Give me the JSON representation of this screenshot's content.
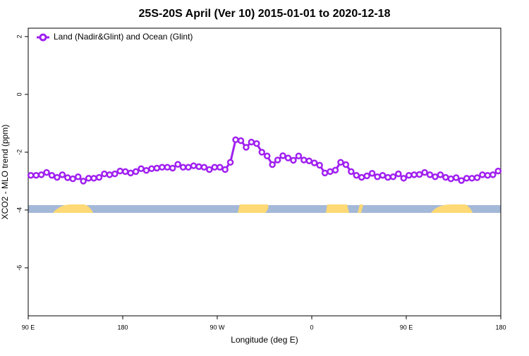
{
  "chart_data": {
    "type": "line",
    "title": "25S-20S April (Ver 10)   2015-01-01 to 2020-12-18",
    "x_label": "Longitude (deg E)",
    "y_label": "XCO2 - MLO trend (ppm)",
    "xlim": [
      90,
      540
    ],
    "ylim": [
      -7.66,
      2.29
    ],
    "xticks": [
      {
        "value": 90,
        "label": "90 E"
      },
      180,
      {
        "value": 270,
        "label": "90 W"
      },
      {
        "value": 360,
        "label": "0"
      },
      {
        "value": 450,
        "label": "90 E"
      },
      {
        "value": 540,
        "label": "180"
      }
    ],
    "yticks": [
      2,
      0,
      -2,
      -4,
      -6
    ],
    "legend": "top-left",
    "x": [
      92.5,
      97.5,
      102.5,
      107.5,
      112.5,
      117.5,
      122.5,
      127.5,
      132.5,
      137.5,
      142.5,
      147.5,
      152.5,
      157.5,
      162.5,
      167.5,
      172.5,
      177.5,
      182.5,
      187.5,
      192.5,
      197.5,
      202.5,
      207.5,
      212.5,
      217.5,
      222.5,
      227.5,
      232.5,
      237.5,
      242.5,
      247.5,
      252.5,
      257.5,
      262.5,
      267.5,
      272.5,
      277.5,
      282.5,
      287.5,
      292.5,
      297.5,
      302.5,
      307.5,
      312.5,
      317.5,
      322.5,
      327.5,
      332.5,
      337.5,
      342.5,
      347.5,
      352.5,
      357.5,
      362.5,
      367.5,
      372.5,
      377.5,
      382.5,
      387.5,
      392.5,
      397.5,
      402.5,
      407.5,
      412.5,
      417.5,
      422.5,
      427.5,
      432.5,
      437.5,
      442.5,
      447.5,
      452.5,
      457.5,
      462.5,
      467.5,
      472.5,
      477.5,
      482.5,
      487.5,
      492.5,
      497.5,
      502.5,
      507.5,
      512.5,
      517.5,
      522.5,
      527.5,
      532.5,
      537.5
    ],
    "series": [
      {
        "name": "Land (Nadir&Glint) and Ocean (Glint)",
        "color": "#a020f0",
        "values": [
          -2.8,
          -2.8,
          -2.78,
          -2.7,
          -2.8,
          -2.87,
          -2.78,
          -2.88,
          -2.92,
          -2.85,
          -3.0,
          -2.9,
          -2.9,
          -2.87,
          -2.75,
          -2.78,
          -2.75,
          -2.65,
          -2.67,
          -2.72,
          -2.67,
          -2.57,
          -2.63,
          -2.57,
          -2.55,
          -2.52,
          -2.52,
          -2.55,
          -2.42,
          -2.52,
          -2.52,
          -2.47,
          -2.5,
          -2.52,
          -2.6,
          -2.52,
          -2.52,
          -2.6,
          -2.35,
          -1.57,
          -1.6,
          -1.83,
          -1.65,
          -1.7,
          -2.0,
          -2.13,
          -2.43,
          -2.27,
          -2.12,
          -2.2,
          -2.28,
          -2.13,
          -2.27,
          -2.3,
          -2.37,
          -2.45,
          -2.72,
          -2.67,
          -2.62,
          -2.35,
          -2.43,
          -2.67,
          -2.8,
          -2.87,
          -2.82,
          -2.73,
          -2.85,
          -2.8,
          -2.87,
          -2.85,
          -2.75,
          -2.9,
          -2.8,
          -2.78,
          -2.77,
          -2.7,
          -2.78,
          -2.85,
          -2.78,
          -2.87,
          -2.92,
          -2.88,
          -2.98,
          -2.9,
          -2.9,
          -2.88,
          -2.78,
          -2.8,
          -2.78,
          -2.65
        ]
      }
    ]
  }
}
